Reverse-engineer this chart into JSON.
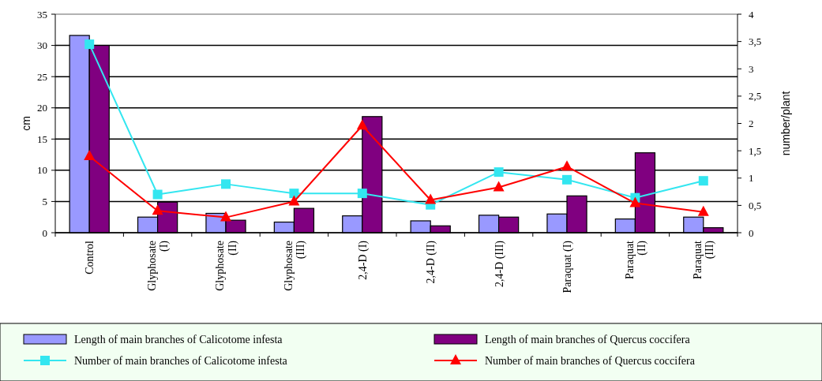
{
  "chart_data": {
    "type": "bar",
    "categories": [
      "Control",
      "Glyphosate (I)",
      "Glyphosate (II)",
      "Glyphosate (III)",
      "2,4-D (I)",
      "2,4-D (II)",
      "2,4-D (III)",
      "Paraquat (I)",
      "Paraquat (II)",
      "Paraquat (III)"
    ],
    "ylabel": "cm",
    "y2label": "number/plant",
    "ylim": [
      0,
      35
    ],
    "yticks": [
      0,
      5,
      10,
      15,
      20,
      25,
      30,
      35
    ],
    "y2lim": [
      0,
      4
    ],
    "y2ticks": [
      0,
      {
        "value": 0.5,
        "label": "0,5"
      },
      1,
      {
        "value": 1.5,
        "label": "1,5"
      },
      2,
      {
        "value": 2.5,
        "label": "2,5"
      },
      3,
      {
        "value": 3.5,
        "label": "3,5"
      },
      4
    ],
    "grid": "y",
    "legend": "bottom",
    "series": [
      {
        "name": "Length of main branches of Calicotome infesta",
        "color": "#9999ff",
        "values": [
          31.6,
          2.5,
          3.1,
          1.7,
          2.7,
          1.9,
          2.8,
          3.0,
          2.2,
          2.5
        ]
      },
      {
        "name": "Length of main branches of Quercus coccifera",
        "color": "#800080",
        "values": [
          30,
          4.9,
          2.0,
          3.9,
          18.6,
          1.1,
          2.5,
          5.9,
          12.8,
          0.8
        ]
      },
      {
        "name": "Number of main branches of Calicotome infesta",
        "type": "line",
        "axis": "y2",
        "marker": "square",
        "color": "#33e6f0",
        "values": [
          3.45,
          0.7,
          0.89,
          0.72,
          0.72,
          0.51,
          1.11,
          0.97,
          0.64,
          0.95
        ]
      },
      {
        "name": "Number of main branches of Quercus coccifera",
        "type": "line",
        "axis": "y2",
        "marker": "triangle",
        "color": "#ff0000",
        "values": [
          1.4,
          0.4,
          0.28,
          0.57,
          1.96,
          0.6,
          0.83,
          1.21,
          0.54,
          0.38
        ]
      }
    ]
  }
}
